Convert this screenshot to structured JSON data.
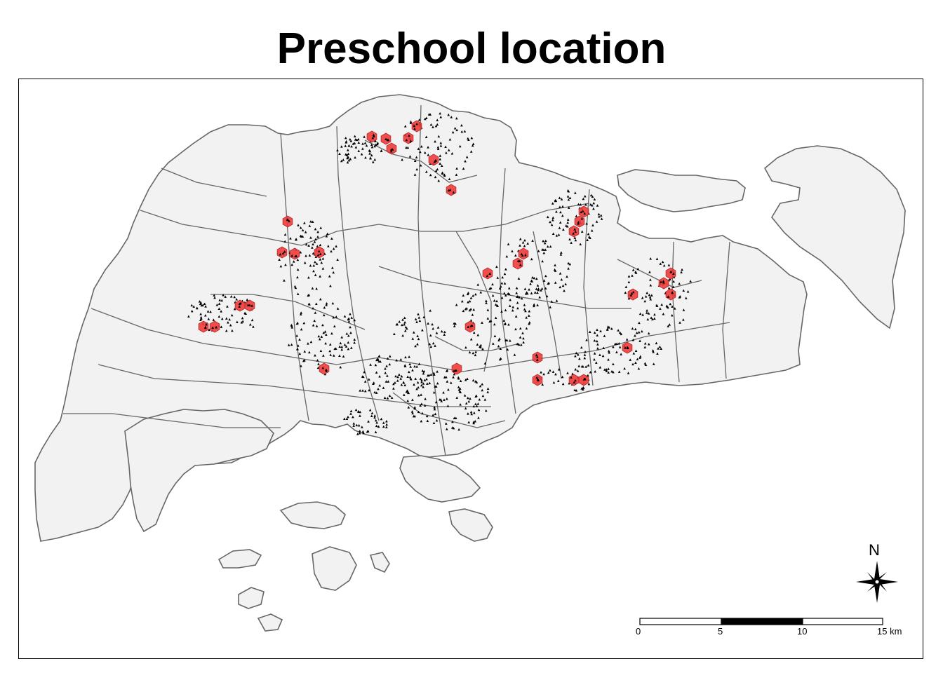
{
  "map": {
    "title": "Preschool location",
    "colors": {
      "land": "#f2f2f2",
      "boundary": "#666666",
      "point": "#000000",
      "cluster": "#ef3b3b",
      "background": "#ffffff"
    },
    "north_arrow": {
      "label": "N",
      "icon": "compass-rose-icon"
    },
    "scale_bar": {
      "labels": [
        "0",
        "5",
        "10",
        "15 km"
      ]
    }
  }
}
